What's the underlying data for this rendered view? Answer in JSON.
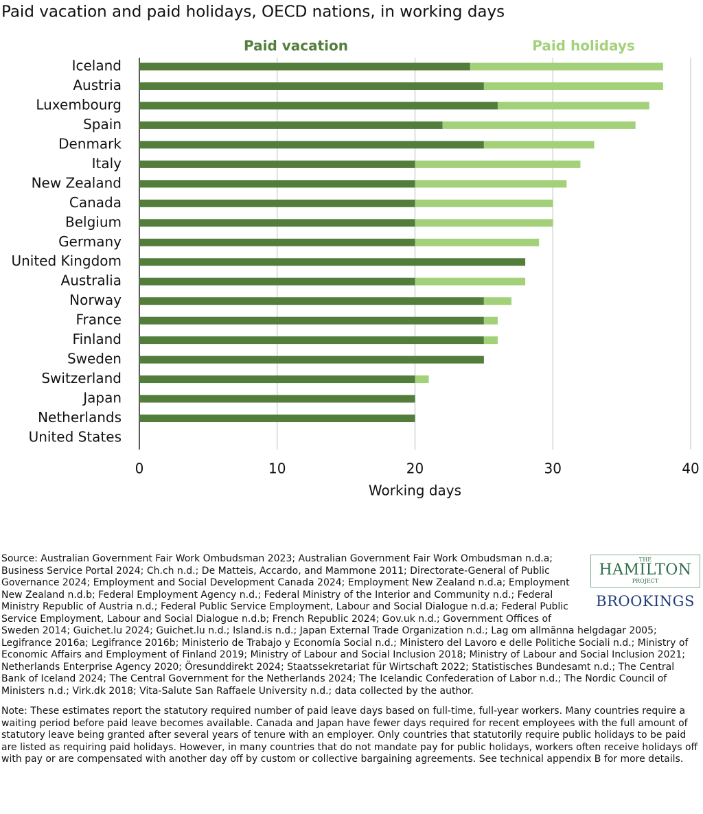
{
  "chart_data": {
    "type": "stacked-barh",
    "title": "Paid vacation and paid holidays, OECD nations, in working days",
    "categories": [
      "Iceland",
      "Austria",
      "Luxembourg",
      "Spain",
      "Denmark",
      "Italy",
      "New Zealand",
      "Canada",
      "Belgium",
      "Germany",
      "United Kingdom",
      "Australia",
      "Norway",
      "France",
      "Finland",
      "Sweden",
      "Switzerland",
      "Japan",
      "Netherlands",
      "United States"
    ],
    "series": [
      {
        "name": "Paid vacation",
        "color": "#527d3b",
        "values": [
          24,
          25,
          26,
          22,
          25,
          20,
          20,
          20,
          20,
          20,
          28,
          20,
          25,
          25,
          25,
          25,
          20,
          20,
          20,
          0
        ]
      },
      {
        "name": "Paid holidays",
        "color": "#a3d17a",
        "values": [
          14,
          13,
          11,
          14,
          8,
          12,
          11,
          10,
          10,
          9,
          0,
          8,
          2,
          1,
          1,
          0,
          1,
          0,
          0,
          0
        ]
      }
    ],
    "xlim": [
      0,
      40
    ],
    "xticks": [
      0,
      10,
      20,
      30,
      40
    ],
    "xlabel": "Working days",
    "grid": true
  },
  "source": "Source: Australian Government Fair Work Ombudsman 2023; Australian Government Fair Work Ombudsman n.d.a; Business Service Portal 2024; Ch.ch n.d.; De Matteis, Accardo, and Mammone 2011; Directorate-General of Public Governance 2024; Employment and Social Development Canada 2024; Employment New Zealand n.d.a; Employment New Zealand n.d.b; Federal Employment Agency n.d.; Federal Ministry of the Interior and Community n.d.; Federal Ministry Republic of Austria n.d.; Federal Public Service Employment, Labour and Social Dialogue n.d.a; Federal Public Service Employment, Labour and Social Dialogue n.d.b; French Republic 2024; Gov.uk n.d.; Government Offices of Sweden 2014; Guichet.lu 2024; Guichet.lu n.d.; Island.is n.d.; Japan External Trade Organization n.d.; Lag om allmänna helgdagar 2005; Legifrance 2016a; Legifrance 2016b; Ministerio de Trabajo y Economía Social n.d.; Ministero del Lavoro e delle Politiche Sociali n.d.; Ministry of Economic Affairs and Employment of Finland 2019; Ministry of Labour and Social Inclusion 2018; Ministry of Labour and Social Inclusion 2021; Netherlands Enterprise Agency 2020; Öresunddirekt 2024; Staatssekretariat für Wirtschaft 2022; Statistisches Bundesamt n.d.; The Central Bank of Iceland 2024; The Central Government for the Netherlands 2024; The Icelandic Confederation of Labor n.d.; The Nordic Council of Ministers n.d.; Virk.dk 2018; Vita-Salute San Raffaele University n.d.; data collected by the author.",
  "note": "Note: These estimates report the statutory required number of paid leave days based on full-time, full-year workers. Many countries require a waiting period before paid leave becomes available. Canada and Japan have fewer days required for recent employees with the full amount of statutory leave being granted after several years of tenure with an employer. Only countries that statutorily require public holidays to be paid are listed as requiring paid holidays. However, in many countries that do not mandate pay for public holidays, workers often receive holidays off with pay or are compensated with another day off by custom or collective bargaining agreements. See technical appendix B for more details.",
  "logo": {
    "the": "THE",
    "hamilton": "HAMILTON",
    "project": "PROJECT",
    "brookings": "BROOKINGS"
  }
}
